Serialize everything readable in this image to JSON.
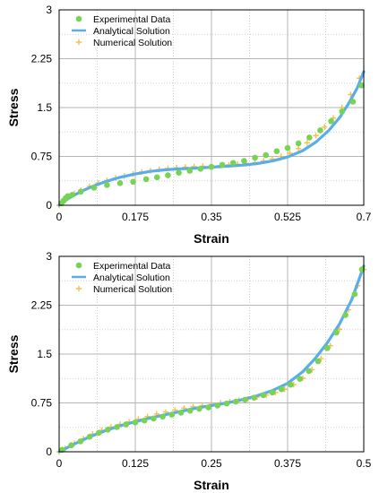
{
  "chart_data": [
    {
      "type": "scatter",
      "xlabel": "Strain",
      "ylabel": "Stress",
      "xlim": [
        0,
        0.7
      ],
      "ylim": [
        0,
        3
      ],
      "xticks": [
        "0",
        "0.175",
        "0.35",
        "0.525",
        "0.7"
      ],
      "yticks": [
        "0",
        "0.75",
        "1.5",
        "2.25",
        "3"
      ],
      "grid": true,
      "legend_position": "top-left",
      "series": [
        {
          "name": "Experimental Data",
          "kind": "markers-dot",
          "color": "#77d353",
          "x": [
            0.005,
            0.01,
            0.015,
            0.02,
            0.03,
            0.05,
            0.08,
            0.11,
            0.14,
            0.17,
            0.2,
            0.225,
            0.25,
            0.275,
            0.3,
            0.325,
            0.35,
            0.375,
            0.4,
            0.425,
            0.45,
            0.475,
            0.5,
            0.525,
            0.55,
            0.575,
            0.6,
            0.625,
            0.65,
            0.675,
            0.695
          ],
          "y": [
            0.03,
            0.07,
            0.11,
            0.14,
            0.16,
            0.21,
            0.27,
            0.31,
            0.34,
            0.36,
            0.4,
            0.43,
            0.46,
            0.5,
            0.53,
            0.56,
            0.59,
            0.62,
            0.65,
            0.68,
            0.73,
            0.77,
            0.83,
            0.88,
            0.95,
            1.04,
            1.15,
            1.29,
            1.44,
            1.59,
            1.84
          ]
        },
        {
          "name": "Analytical Solution",
          "kind": "line",
          "color": "#5aaee8",
          "x": [
            0,
            0.02,
            0.05,
            0.08,
            0.11,
            0.14,
            0.175,
            0.21,
            0.245,
            0.28,
            0.315,
            0.35,
            0.385,
            0.42,
            0.455,
            0.49,
            0.525,
            0.56,
            0.59,
            0.62,
            0.645,
            0.665,
            0.685,
            0.7
          ],
          "y": [
            0,
            0.1,
            0.21,
            0.3,
            0.37,
            0.43,
            0.48,
            0.52,
            0.545,
            0.56,
            0.57,
            0.585,
            0.6,
            0.615,
            0.64,
            0.68,
            0.74,
            0.84,
            0.97,
            1.15,
            1.35,
            1.56,
            1.8,
            2.05
          ]
        },
        {
          "name": "Numerical Solution",
          "kind": "markers-plus",
          "color": "#f5c04a",
          "x": [
            0,
            0.01,
            0.02,
            0.035,
            0.05,
            0.07,
            0.09,
            0.11,
            0.13,
            0.15,
            0.17,
            0.19,
            0.21,
            0.23,
            0.25,
            0.27,
            0.29,
            0.31,
            0.33,
            0.35,
            0.37,
            0.39,
            0.41,
            0.43,
            0.45,
            0.47,
            0.49,
            0.51,
            0.53,
            0.55,
            0.57,
            0.59,
            0.61,
            0.63,
            0.65,
            0.67,
            0.69
          ],
          "y": [
            0,
            0.05,
            0.11,
            0.18,
            0.23,
            0.29,
            0.34,
            0.38,
            0.42,
            0.45,
            0.48,
            0.51,
            0.53,
            0.55,
            0.565,
            0.575,
            0.585,
            0.595,
            0.6,
            0.605,
            0.61,
            0.62,
            0.63,
            0.64,
            0.655,
            0.68,
            0.71,
            0.75,
            0.8,
            0.87,
            0.96,
            1.07,
            1.2,
            1.34,
            1.5,
            1.7,
            1.95
          ]
        }
      ]
    },
    {
      "type": "scatter",
      "xlabel": "Strain",
      "ylabel": "Stress",
      "xlim": [
        0,
        0.5
      ],
      "ylim": [
        0,
        3
      ],
      "xticks": [
        "0",
        "0.125",
        "0.25",
        "0.375",
        "0.5"
      ],
      "yticks": [
        "0",
        "0.75",
        "1.5",
        "2.25",
        "3"
      ],
      "grid": true,
      "legend_position": "top-left",
      "series": [
        {
          "name": "Experimental Data",
          "kind": "markers-dot",
          "color": "#77d353",
          "x": [
            0.005,
            0.02,
            0.035,
            0.05,
            0.065,
            0.08,
            0.095,
            0.11,
            0.125,
            0.14,
            0.155,
            0.17,
            0.185,
            0.2,
            0.215,
            0.23,
            0.245,
            0.26,
            0.275,
            0.29,
            0.305,
            0.32,
            0.335,
            0.35,
            0.365,
            0.38,
            0.395,
            0.41,
            0.425,
            0.44,
            0.455,
            0.47,
            0.485,
            0.497
          ],
          "y": [
            0.03,
            0.1,
            0.16,
            0.23,
            0.29,
            0.34,
            0.38,
            0.42,
            0.45,
            0.48,
            0.51,
            0.54,
            0.57,
            0.6,
            0.63,
            0.66,
            0.68,
            0.71,
            0.74,
            0.77,
            0.8,
            0.83,
            0.87,
            0.91,
            0.96,
            1.03,
            1.12,
            1.24,
            1.39,
            1.59,
            1.83,
            2.1,
            2.42,
            2.8
          ]
        },
        {
          "name": "Analytical Solution",
          "kind": "line",
          "color": "#5aaee8",
          "x": [
            0,
            0.025,
            0.05,
            0.075,
            0.1,
            0.125,
            0.15,
            0.175,
            0.2,
            0.225,
            0.25,
            0.275,
            0.3,
            0.325,
            0.35,
            0.375,
            0.4,
            0.42,
            0.44,
            0.46,
            0.48,
            0.5
          ],
          "y": [
            0,
            0.12,
            0.23,
            0.32,
            0.4,
            0.46,
            0.52,
            0.57,
            0.62,
            0.67,
            0.71,
            0.75,
            0.8,
            0.86,
            0.94,
            1.05,
            1.23,
            1.43,
            1.67,
            1.96,
            2.33,
            2.85
          ]
        },
        {
          "name": "Numerical Solution",
          "kind": "markers-plus",
          "color": "#f5c04a",
          "x": [
            0,
            0.01,
            0.025,
            0.04,
            0.055,
            0.07,
            0.085,
            0.1,
            0.115,
            0.13,
            0.145,
            0.16,
            0.175,
            0.19,
            0.205,
            0.22,
            0.235,
            0.25,
            0.265,
            0.28,
            0.295,
            0.31,
            0.325,
            0.34,
            0.355,
            0.37,
            0.385,
            0.4,
            0.415,
            0.43,
            0.445,
            0.46,
            0.475,
            0.49,
            0.5
          ],
          "y": [
            0,
            0.05,
            0.13,
            0.2,
            0.27,
            0.33,
            0.38,
            0.42,
            0.46,
            0.5,
            0.54,
            0.58,
            0.61,
            0.64,
            0.67,
            0.69,
            0.71,
            0.73,
            0.75,
            0.77,
            0.79,
            0.81,
            0.84,
            0.87,
            0.91,
            0.96,
            1.03,
            1.13,
            1.26,
            1.43,
            1.63,
            1.88,
            2.18,
            2.55,
            2.8
          ]
        }
      ]
    }
  ]
}
